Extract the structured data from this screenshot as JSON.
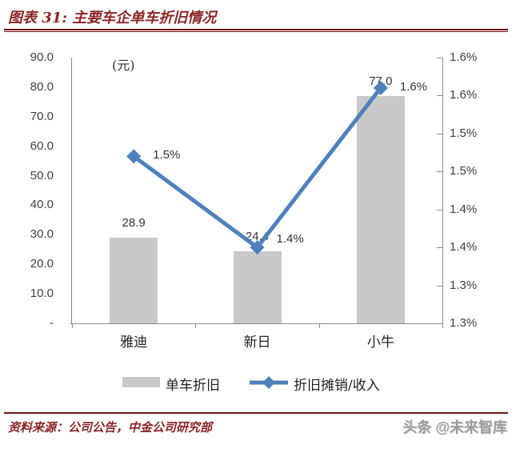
{
  "header": {
    "title": "图表 31: 主要车企单车折旧情况"
  },
  "chart_data": {
    "type": "combo_bar_line",
    "categories": [
      "雅迪",
      "新日",
      "小牛"
    ],
    "series": [
      {
        "name": "单车折旧",
        "type": "bar",
        "axis": "left",
        "color": "#C9C9C9",
        "values": [
          28.9,
          24.4,
          77.0
        ],
        "labels": [
          "28.9",
          "24.4",
          "77.0"
        ]
      },
      {
        "name": "折旧摊销/收入",
        "type": "line",
        "axis": "right",
        "color": "#4F81BD",
        "values": [
          1.52,
          1.4,
          1.61
        ],
        "labels": [
          "1.5%",
          "1.4%",
          "1.6%"
        ]
      }
    ],
    "left_axis": {
      "unit_label": "(元)",
      "min": 0,
      "max": 90,
      "ticks": [
        "90.0",
        "80.0",
        "70.0",
        "60.0",
        "50.0",
        "40.0",
        "30.0",
        "20.0",
        "10.0",
        "-"
      ]
    },
    "right_axis": {
      "min": 1.3,
      "max": 1.65,
      "ticks": [
        "1.6%",
        "1.6%",
        "1.5%",
        "1.5%",
        "1.4%",
        "1.4%",
        "1.3%",
        "1.3%"
      ]
    },
    "grid": false,
    "legend_position": "bottom"
  },
  "footer": {
    "source": "资料来源：公司公告，中金公司研究部",
    "watermark": "头条 @未来智库"
  },
  "colors": {
    "maroon": "#8B2525",
    "bar_gray": "#C9C9C9",
    "line_blue": "#4F81BD",
    "axis_gray": "#8C8C8C"
  }
}
